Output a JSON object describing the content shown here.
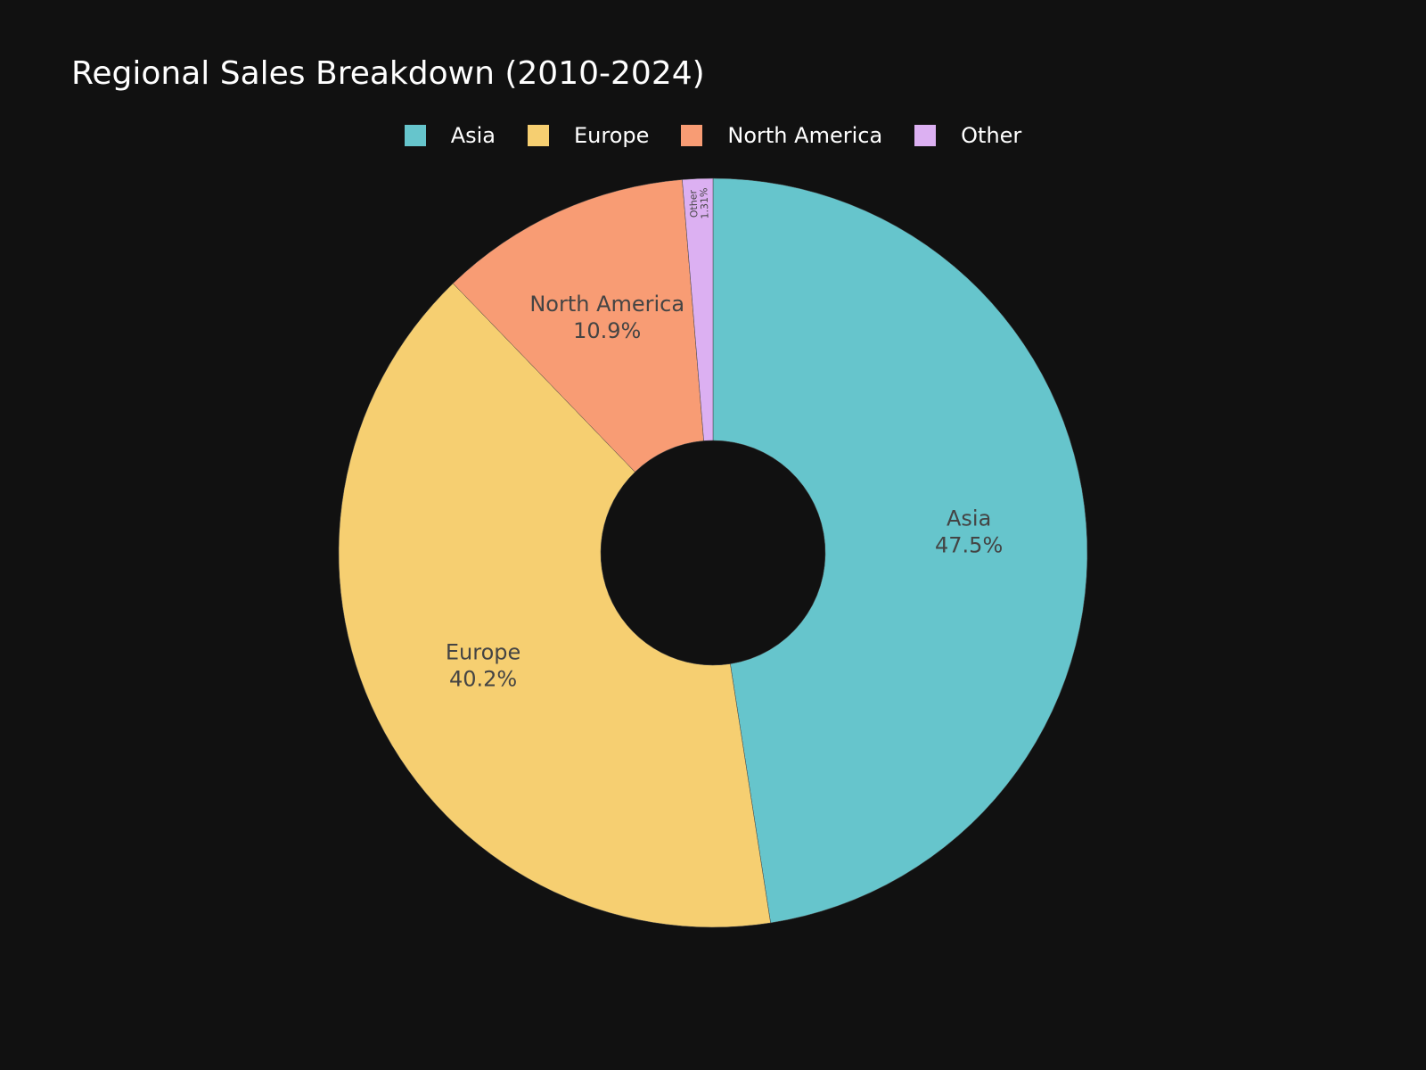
{
  "chart_data": {
    "type": "pie",
    "title": "Regional Sales Breakdown (2010-2024)",
    "hole": 0.3,
    "legend_position": "top-center",
    "slices": [
      {
        "label": "Asia",
        "percent": 47.5,
        "percent_text": "47.5%",
        "color": "#66C5CC"
      },
      {
        "label": "Europe",
        "percent": 40.2,
        "percent_text": "40.2%",
        "color": "#F6CF71"
      },
      {
        "label": "North America",
        "percent": 10.9,
        "percent_text": "10.9%",
        "color": "#F89C74"
      },
      {
        "label": "Other",
        "percent": 1.31,
        "percent_text": "1.31%",
        "color": "#DCB0F2"
      }
    ]
  },
  "legend": {
    "items": [
      {
        "label": "Asia",
        "color": "#66C5CC"
      },
      {
        "label": "Europe",
        "color": "#F6CF71"
      },
      {
        "label": "North America",
        "color": "#F89C74"
      },
      {
        "label": "Other",
        "color": "#DCB0F2"
      }
    ]
  },
  "colors": {
    "background": "#111111",
    "text": "#ffffff",
    "slice_text": "#444444"
  }
}
